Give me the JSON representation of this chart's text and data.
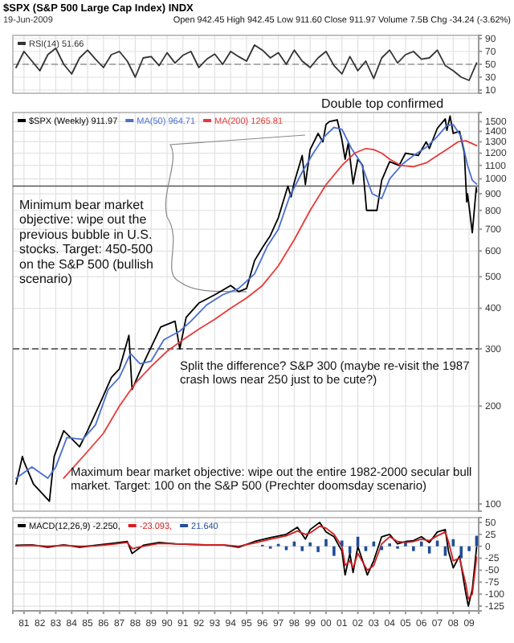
{
  "chart_data": [
    {
      "type": "line",
      "title": "$SPX (S&P 500 Large Cap Index) INDX",
      "subtitle": "19-Jun-2009",
      "annotations": [
        "Open 942.45  High 942.45  Low 911.60  Close 911.97  Volume 7.5B  Chg -34.24 (-3.62%)"
      ],
      "xlim": [
        1980.3,
        2009.6
      ],
      "xticks": [
        1981,
        1982,
        1983,
        1984,
        1985,
        1986,
        1987,
        1988,
        1989,
        1990,
        1991,
        1992,
        1993,
        1994,
        1995,
        1996,
        1997,
        1998,
        1999,
        2000,
        2001,
        2002,
        2003,
        2004,
        2005,
        2006,
        2007,
        2008,
        2009
      ],
      "ylim": [
        5,
        95
      ],
      "yticks": [
        10,
        30,
        50,
        70,
        90
      ],
      "grid": true,
      "tick_labels": "y",
      "legend": "top left",
      "ref_lines": [
        {
          "axis": "y",
          "value": 50,
          "color": "#999999",
          "line_style": "dashed"
        }
      ],
      "series": [
        {
          "name": "RSI(14) 51.66",
          "color": "#333333",
          "x": [
            1980.5,
            1981,
            1981.5,
            1982,
            1982.5,
            1983,
            1983.5,
            1984,
            1984.5,
            1985,
            1985.5,
            1986,
            1986.5,
            1987,
            1987.5,
            1988,
            1988.5,
            1989,
            1989.5,
            1990,
            1990.5,
            1991,
            1991.5,
            1992,
            1992.5,
            1993,
            1993.5,
            1994,
            1994.5,
            1995,
            1995.5,
            1996,
            1996.5,
            1997,
            1997.5,
            1998,
            1998.5,
            1999,
            1999.5,
            2000,
            2000.5,
            2001,
            2001.5,
            2002,
            2002.5,
            2003,
            2003.5,
            2004,
            2004.5,
            2005,
            2005.5,
            2006,
            2006.5,
            2007,
            2007.5,
            2008,
            2008.5,
            2009,
            2009.47
          ],
          "values": [
            45,
            70,
            55,
            40,
            65,
            75,
            50,
            35,
            60,
            72,
            58,
            45,
            65,
            70,
            55,
            30,
            60,
            62,
            48,
            68,
            52,
            64,
            70,
            45,
            58,
            66,
            50,
            70,
            62,
            55,
            80,
            72,
            60,
            68,
            50,
            72,
            55,
            45,
            60,
            70,
            48,
            35,
            62,
            40,
            55,
            28,
            60,
            72,
            52,
            65,
            70,
            58,
            60,
            72,
            48,
            40,
            30,
            25,
            52
          ]
        }
      ]
    },
    {
      "type": "line",
      "xlim": [
        1980.3,
        2009.6
      ],
      "xticks": [
        1981,
        1982,
        1983,
        1984,
        1985,
        1986,
        1987,
        1988,
        1989,
        1990,
        1991,
        1992,
        1993,
        1994,
        1995,
        1996,
        1997,
        1998,
        1999,
        2000,
        2001,
        2002,
        2003,
        2004,
        2005,
        2006,
        2007,
        2008,
        2009
      ],
      "ylim": [
        95,
        1600
      ],
      "log": true,
      "yticks": [
        100,
        200,
        300,
        400,
        500,
        600,
        700,
        800,
        900,
        1000,
        1100,
        1200,
        1300,
        1400,
        1500
      ],
      "grid": true,
      "tick_labels": "y",
      "legend": "top left",
      "annotations": [
        "Double top confirmed",
        {
          "text": "Minimum bear market objective: wipe out the previous bubble in U.S. stocks. Target: 450-500 on the S&P 500 (bullish scenario)",
          "x": 1995,
          "y": 450
        },
        "Split the difference? S&P 300 (maybe re-visit the 1987 crash lows near 250 just to be cute?)",
        "Maximum bear market objective: wipe out the entire 1982-2000 secular bull market. Target: 100 on the S&P 500 (Prechter doomsday scenario)"
      ],
      "ref_lines": [
        {
          "axis": "y",
          "value": 950,
          "color": "#555555",
          "line_style": "solid"
        },
        {
          "axis": "y",
          "value": 300,
          "color": "#444444",
          "line_style": "dashed"
        }
      ],
      "series": [
        {
          "name": "$SPX (Weekly) 911.97",
          "color": "#000000",
          "x": [
            1980.5,
            1980.9,
            1981.0,
            1981.6,
            1982.6,
            1982.9,
            1983.5,
            1984.5,
            1985.0,
            1985.9,
            1986.5,
            1987.0,
            1987.6,
            1987.8,
            1988.5,
            1989.6,
            1990.5,
            1990.8,
            1991.2,
            1992.0,
            1993.0,
            1994.0,
            1994.5,
            1995.0,
            1995.5,
            1996.0,
            1996.5,
            1997.0,
            1997.6,
            1997.8,
            1998.0,
            1998.5,
            1998.7,
            1999.0,
            1999.5,
            1999.8,
            2000.0,
            2000.2,
            2000.7,
            2001.0,
            2001.2,
            2001.4,
            2001.7,
            2002.0,
            2002.3,
            2002.55,
            2002.75,
            2003.2,
            2003.5,
            2004.0,
            2004.6,
            2005.0,
            2005.8,
            2006.3,
            2006.5,
            2007.0,
            2007.5,
            2007.6,
            2007.8,
            2008.0,
            2008.4,
            2008.7,
            2008.85,
            2008.9,
            2009.2,
            2009.45,
            2009.47
          ],
          "values": [
            115,
            140,
            135,
            115,
            102,
            140,
            168,
            150,
            168,
            210,
            245,
            260,
            330,
            225,
            270,
            350,
            365,
            300,
            375,
            415,
            440,
            470,
            450,
            460,
            560,
            615,
            670,
            760,
            950,
            880,
            975,
            1180,
            960,
            1230,
            1380,
            1300,
            1470,
            1500,
            1520,
            1320,
            1150,
            1290,
            965,
            1150,
            1100,
            800,
            800,
            800,
            990,
            1130,
            1100,
            1200,
            1180,
            1300,
            1240,
            1430,
            1530,
            1410,
            1560,
            1380,
            1400,
            1200,
            850,
            900,
            683,
            940,
            911.97
          ]
        },
        {
          "name": "MA(50) 964.71",
          "color": "#4a6fd0",
          "x": [
            1980.5,
            1981.5,
            1982.5,
            1983.0,
            1983.7,
            1984.7,
            1985.5,
            1986.3,
            1987.0,
            1987.7,
            1988.3,
            1989.0,
            1989.8,
            1990.8,
            1991.5,
            1992.5,
            1993.5,
            1994.5,
            1995.5,
            1996.3,
            1997.0,
            1997.7,
            1998.5,
            1999.2,
            1999.9,
            2000.5,
            2001.0,
            2001.6,
            2002.2,
            2002.9,
            2003.5,
            2004.0,
            2004.8,
            2005.5,
            2006.3,
            2007.0,
            2007.6,
            2008.0,
            2008.5,
            2008.9,
            2009.2,
            2009.47
          ],
          "values": [
            120,
            130,
            120,
            130,
            160,
            158,
            175,
            225,
            245,
            290,
            270,
            275,
            320,
            340,
            365,
            410,
            440,
            460,
            510,
            620,
            700,
            880,
            1050,
            1200,
            1350,
            1440,
            1420,
            1240,
            1120,
            900,
            870,
            1000,
            1110,
            1180,
            1250,
            1350,
            1460,
            1470,
            1350,
            1100,
            990,
            964.71
          ]
        },
        {
          "name": "MA(200) 1265.81",
          "color": "#e83a3a",
          "x": [
            1983.5,
            1985,
            1986,
            1987,
            1988,
            1989,
            1990,
            1991,
            1992,
            1993,
            1994,
            1995,
            1996,
            1997,
            1998,
            1999,
            2000,
            2001,
            2001.8,
            2002.5,
            2003,
            2003.5,
            2004,
            2004.7,
            2005.5,
            2006.3,
            2007,
            2007.8,
            2008.3,
            2008.8,
            2009.47
          ],
          "values": [
            120,
            145,
            165,
            200,
            235,
            265,
            295,
            320,
            345,
            370,
            400,
            430,
            470,
            540,
            650,
            800,
            960,
            1100,
            1200,
            1240,
            1230,
            1200,
            1150,
            1100,
            1090,
            1120,
            1180,
            1250,
            1300,
            1310,
            1265.81
          ]
        }
      ]
    },
    {
      "type": "line",
      "xlim": [
        1980.3,
        2009.6
      ],
      "xticks": [
        {
          "value": 1981,
          "label": "81"
        },
        {
          "value": 1982,
          "label": "82"
        },
        {
          "value": 1983,
          "label": "83"
        },
        {
          "value": 1984,
          "label": "84"
        },
        {
          "value": 1985,
          "label": "85"
        },
        {
          "value": 1986,
          "label": "86"
        },
        {
          "value": 1987,
          "label": "87"
        },
        {
          "value": 1988,
          "label": "88"
        },
        {
          "value": 1989,
          "label": "89"
        },
        {
          "value": 1990,
          "label": "90"
        },
        {
          "value": 1991,
          "label": "91"
        },
        {
          "value": 1992,
          "label": "92"
        },
        {
          "value": 1993,
          "label": "93"
        },
        {
          "value": 1994,
          "label": "94"
        },
        {
          "value": 1995,
          "label": "95"
        },
        {
          "value": 1996,
          "label": "96"
        },
        {
          "value": 1997,
          "label": "97"
        },
        {
          "value": 1998,
          "label": "98"
        },
        {
          "value": 1999,
          "label": "99"
        },
        {
          "value": 2000,
          "label": "00"
        },
        {
          "value": 2001,
          "label": "01"
        },
        {
          "value": 2002,
          "label": "02"
        },
        {
          "value": 2003,
          "label": "03"
        },
        {
          "value": 2004,
          "label": "04"
        },
        {
          "value": 2005,
          "label": "05"
        },
        {
          "value": 2006,
          "label": "06"
        },
        {
          "value": 2007,
          "label": "07"
        },
        {
          "value": 2008,
          "label": "08"
        },
        {
          "value": 2009,
          "label": "09"
        }
      ],
      "ylim": [
        -135,
        60
      ],
      "yticks": [
        50,
        25,
        0,
        -25,
        -50,
        -75,
        -100,
        -125
      ],
      "grid": true,
      "legend": "top left",
      "series": [
        {
          "name": "MACD(12,26,9) -2.250,",
          "color": "#000000",
          "x": [
            1980.5,
            1981.5,
            1982.5,
            1983.5,
            1984.5,
            1985.5,
            1986.5,
            1987.5,
            1987.8,
            1988.5,
            1989.5,
            1990.5,
            1991.5,
            1992.5,
            1993.5,
            1994.5,
            1995.5,
            1996.5,
            1997.5,
            1998.2,
            1998.7,
            1999.0,
            1999.6,
            2000.0,
            2000.5,
            2001.0,
            2001.2,
            2001.5,
            2001.7,
            2002.0,
            2002.6,
            2003.0,
            2003.5,
            2004.0,
            2004.5,
            2005.0,
            2005.5,
            2006.0,
            2006.5,
            2007.0,
            2007.5,
            2007.7,
            2008.0,
            2008.4,
            2008.8,
            2008.95,
            2009.2,
            2009.47
          ],
          "values": [
            2,
            3,
            -2,
            3,
            -2,
            2,
            6,
            10,
            -15,
            2,
            8,
            5,
            4,
            3,
            3,
            -2,
            10,
            18,
            25,
            40,
            15,
            35,
            50,
            30,
            20,
            -10,
            -60,
            -15,
            -55,
            0,
            -60,
            -30,
            20,
            25,
            5,
            10,
            12,
            20,
            8,
            30,
            35,
            -10,
            -45,
            -20,
            -100,
            -125,
            -90,
            -2
          ]
        },
        {
          "name": "-23.093,",
          "color": "#d42020",
          "x": [
            1980.5,
            1981.5,
            1982.5,
            1983.5,
            1984.5,
            1985.5,
            1986.5,
            1987.5,
            1987.8,
            1988.5,
            1989.5,
            1990.5,
            1991.5,
            1992.5,
            1993.5,
            1994.5,
            1995.5,
            1996.5,
            1997.5,
            1998.2,
            1998.7,
            1999.0,
            1999.6,
            2000.0,
            2000.5,
            2001.0,
            2001.2,
            2001.5,
            2001.7,
            2002.0,
            2002.6,
            2003.0,
            2003.5,
            2004.0,
            2004.5,
            2005.0,
            2005.5,
            2006.0,
            2006.5,
            2007.0,
            2007.5,
            2007.7,
            2008.0,
            2008.4,
            2008.8,
            2008.95,
            2009.2,
            2009.47
          ],
          "values": [
            1,
            2,
            0,
            2,
            0,
            1,
            4,
            8,
            -5,
            0,
            6,
            5,
            4,
            3,
            3,
            0,
            7,
            15,
            22,
            32,
            25,
            28,
            42,
            38,
            25,
            0,
            -40,
            -30,
            -45,
            -15,
            -50,
            -40,
            5,
            20,
            10,
            8,
            10,
            15,
            12,
            22,
            30,
            10,
            -30,
            -25,
            -80,
            -110,
            -100,
            -23
          ]
        },
        {
          "name": "21.640",
          "type": "bar",
          "color": "#1f4e9a",
          "x": [
            1996,
            1996.5,
            1997,
            1997.5,
            1998,
            1998.5,
            1999,
            1999.5,
            2000,
            2000.5,
            2001,
            2001.5,
            2002,
            2002.5,
            2003,
            2003.5,
            2004,
            2004.5,
            2005,
            2005.5,
            2006,
            2006.5,
            2007,
            2007.5,
            2008,
            2008.5,
            2009,
            2009.47
          ],
          "values": [
            3,
            -5,
            5,
            -8,
            10,
            -10,
            8,
            -12,
            15,
            -20,
            12,
            -15,
            20,
            -10,
            10,
            -8,
            6,
            -5,
            8,
            -10,
            10,
            -15,
            12,
            -20,
            15,
            -25,
            -10,
            22
          ]
        }
      ]
    }
  ]
}
